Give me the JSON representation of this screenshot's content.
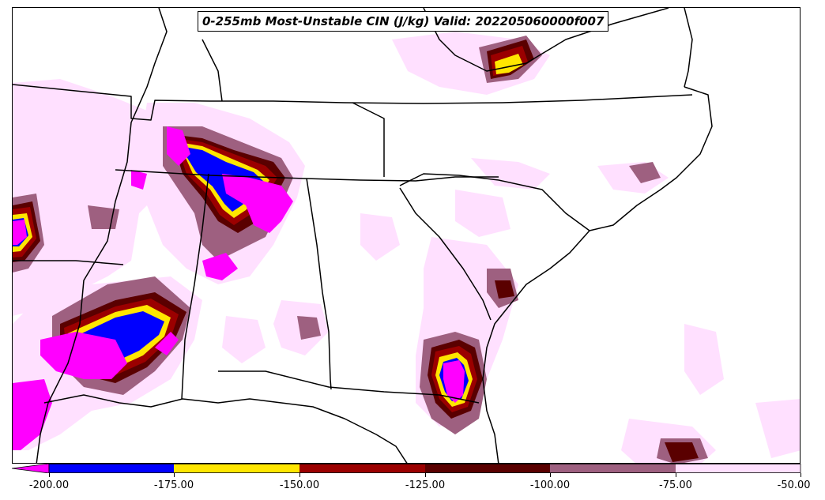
{
  "title": "0-255mb Most-Unstable CIN (J/kg) Valid: 202205060000f007",
  "colorbar": {
    "ticks": [
      "-200.00",
      "-175.00",
      "-150.00",
      "-125.00",
      "-100.00",
      "-75.00",
      "-50.00"
    ],
    "colors": [
      "#ff00ff",
      "#0000ff",
      "#ffe600",
      "#9b0000",
      "#5a0000",
      "#9e6080",
      "#ffe0ff"
    ],
    "extend_min_color": "#ff00ff"
  },
  "map": {
    "fill_levels": {
      "minus50_to_minus75": "#ffe0ff",
      "minus75_to_minus100": "#9e6080",
      "minus100_to_minus125": "#5a0000",
      "minus125_to_minus150": "#9b0000",
      "minus150_to_minus175": "#ffe600",
      "minus175_to_minus200": "#0000ff",
      "below_minus200": "#ff00ff"
    }
  }
}
